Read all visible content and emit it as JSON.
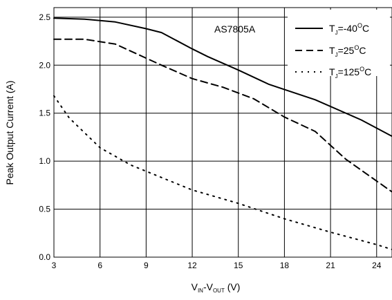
{
  "chart_data": {
    "type": "line",
    "annotation": "AS7805A",
    "xlabel": {
      "main": "V",
      "sub1": "IN",
      "mid": "-V",
      "sub2": "OUT",
      "unit": " (V)"
    },
    "ylabel": "Peak Output Current (A)",
    "xlim": [
      3,
      25
    ],
    "ylim": [
      0,
      2.6
    ],
    "xticks": [
      3,
      6,
      9,
      12,
      15,
      18,
      21,
      24
    ],
    "xtick_labels": [
      "3",
      "6",
      "9",
      "12",
      "15",
      "18",
      "21",
      "24"
    ],
    "yticks": [
      0,
      0.5,
      1.0,
      1.5,
      2.0,
      2.5
    ],
    "ytick_labels": [
      "0.0",
      "0.5",
      "1.0",
      "1.5",
      "2.0",
      "2.5"
    ],
    "grid": true,
    "legend_position": "top-right",
    "series": [
      {
        "name": "TJ=-40°C",
        "legend": {
          "base": "T",
          "sub": "J",
          "text": "=-40",
          "sup": "O",
          "unit": "C"
        },
        "style": "solid",
        "x": [
          3,
          5,
          7,
          9,
          10,
          12,
          13,
          15,
          17,
          20,
          23,
          25
        ],
        "y": [
          2.49,
          2.48,
          2.45,
          2.38,
          2.34,
          2.17,
          2.09,
          1.95,
          1.8,
          1.64,
          1.43,
          1.26
        ]
      },
      {
        "name": "TJ=25°C",
        "legend": {
          "base": "T",
          "sub": "J",
          "text": "=25",
          "sup": "O",
          "unit": "C"
        },
        "style": "dashed",
        "x": [
          3,
          5,
          7,
          10,
          12,
          14,
          16,
          18,
          20,
          22,
          25
        ],
        "y": [
          2.27,
          2.27,
          2.22,
          2.0,
          1.86,
          1.77,
          1.65,
          1.46,
          1.31,
          1.02,
          0.68
        ]
      },
      {
        "name": "TJ=125°C",
        "legend": {
          "base": "T",
          "sub": "J",
          "text": "=125",
          "sup": "O",
          "unit": "C"
        },
        "style": "dotted",
        "x": [
          3,
          4,
          6,
          8,
          10,
          12,
          15,
          18,
          21,
          24,
          25
        ],
        "y": [
          1.68,
          1.45,
          1.14,
          0.96,
          0.83,
          0.7,
          0.56,
          0.4,
          0.26,
          0.13,
          0.08
        ]
      }
    ]
  }
}
